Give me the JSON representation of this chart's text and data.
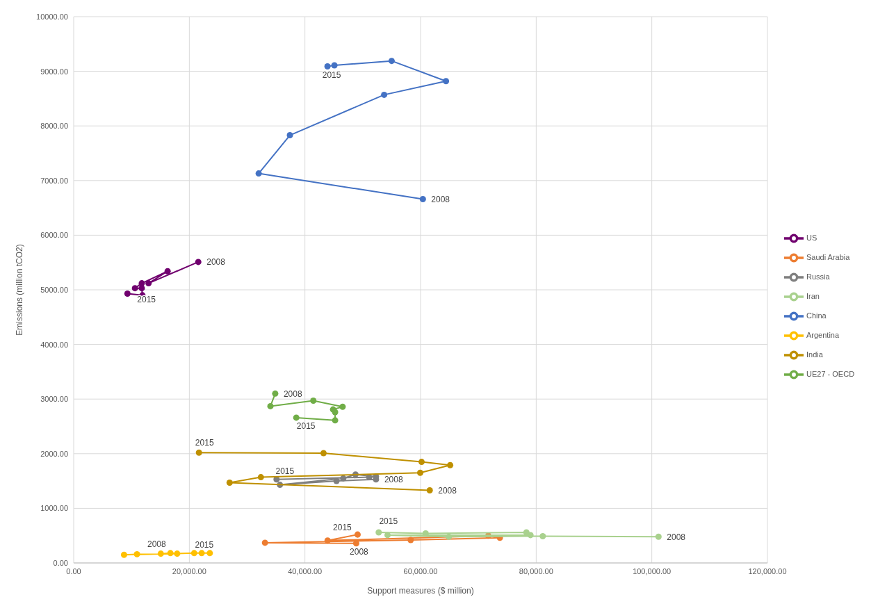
{
  "chart_data": {
    "type": "scatter",
    "xlabel": "Support measures ($ million)",
    "ylabel": "Emissions (million tCO2)",
    "xlim": [
      0,
      120000
    ],
    "ylim": [
      0,
      10000
    ],
    "xticks": [
      {
        "value": 0,
        "label": "0.00"
      },
      {
        "value": 20000,
        "label": "20,000.00"
      },
      {
        "value": 40000,
        "label": "40,000.00"
      },
      {
        "value": 60000,
        "label": "60,000.00"
      },
      {
        "value": 80000,
        "label": "80,000.00"
      },
      {
        "value": 100000,
        "label": "100,000.00"
      },
      {
        "value": 120000,
        "label": "120,000.00"
      }
    ],
    "yticks": [
      {
        "value": 0,
        "label": "0.00"
      },
      {
        "value": 1000,
        "label": "1000.00"
      },
      {
        "value": 2000,
        "label": "2000.00"
      },
      {
        "value": 3000,
        "label": "3000.00"
      },
      {
        "value": 4000,
        "label": "4000.00"
      },
      {
        "value": 5000,
        "label": "5000.00"
      },
      {
        "value": 6000,
        "label": "6000.00"
      },
      {
        "value": 7000,
        "label": "7000.00"
      },
      {
        "value": 8000,
        "label": "8000.00"
      },
      {
        "value": 9000,
        "label": "9000.00"
      },
      {
        "value": 10000,
        "label": "10000.00"
      }
    ],
    "grid": true,
    "legend": "right",
    "marker": "circle",
    "line_style": "solid",
    "series": [
      {
        "name": "US",
        "type": "line",
        "color": "#70006e",
        "x": [
          21550,
          12950,
          16250,
          11780,
          10600,
          11780,
          11890,
          9300
        ],
        "values": [
          5510,
          5120,
          5340,
          5120,
          5030,
          5030,
          4900,
          4930
        ]
      },
      {
        "name": "Saudi Arabia",
        "type": "line",
        "color": "#ed7d31",
        "x": [
          48870,
          33090,
          58290,
          73720,
          71710,
          43920,
          49110
        ],
        "values": [
          360,
          370,
          420,
          460,
          500,
          410,
          520
        ]
      },
      {
        "name": "Russia",
        "type": "line",
        "color": "#7f7f7f",
        "x": [
          52290,
          45460,
          35680,
          46630,
          48750,
          52290,
          51110,
          35090
        ],
        "values": [
          1530,
          1500,
          1430,
          1550,
          1620,
          1580,
          1570,
          1530
        ]
      },
      {
        "name": "Iran",
        "type": "line",
        "color": "#a9d18e",
        "x": [
          101160,
          81140,
          64890,
          54290,
          79020,
          78310,
          60880,
          52760
        ],
        "values": [
          480,
          490,
          480,
          510,
          510,
          560,
          540,
          560
        ]
      },
      {
        "name": "China",
        "type": "line",
        "color": "#4472c4",
        "x": [
          60400,
          32000,
          37400,
          53700,
          64400,
          55000,
          45100,
          43900
        ],
        "values": [
          6660,
          7130,
          7830,
          8570,
          8820,
          9190,
          9110,
          9090
        ]
      },
      {
        "name": "Argentina",
        "type": "line",
        "color": "#ffc000",
        "x": [
          15070,
          16730,
          17900,
          10950,
          8710,
          20840,
          22140,
          23550
        ],
        "values": [
          170,
          180,
          170,
          160,
          150,
          180,
          180,
          180
        ]
      },
      {
        "name": "India",
        "type": "line",
        "color": "#bf9000",
        "x": [
          61590,
          26970,
          32380,
          59940,
          65120,
          60180,
          43220,
          21670
        ],
        "values": [
          1330,
          1470,
          1570,
          1650,
          1790,
          1850,
          2010,
          2020
        ]
      },
      {
        "name": "UE27 - OECD",
        "type": "line",
        "color": "#70ad47",
        "x": [
          34860,
          34030,
          41450,
          46520,
          44870,
          45220,
          45220,
          38500
        ],
        "values": [
          3100,
          2870,
          2970,
          2860,
          2810,
          2760,
          2610,
          2660
        ]
      }
    ],
    "annotations": [
      {
        "text": "2008",
        "x": 60400,
        "y": 6660
      },
      {
        "text": "2015",
        "x": 43900,
        "y": 9090
      },
      {
        "text": "2008",
        "x": 21550,
        "y": 5510
      },
      {
        "text": "2015",
        "x": 9300,
        "y": 4930
      },
      {
        "text": "2008",
        "x": 34860,
        "y": 3100
      },
      {
        "text": "2015",
        "x": 38500,
        "y": 2660
      },
      {
        "text": "2015",
        "x": 21670,
        "y": 2020
      },
      {
        "text": "2008",
        "x": 61590,
        "y": 1330
      },
      {
        "text": "2015",
        "x": 35090,
        "y": 1530
      },
      {
        "text": "2008",
        "x": 52290,
        "y": 1530
      },
      {
        "text": "2015",
        "x": 52760,
        "y": 560
      },
      {
        "text": "2008",
        "x": 101160,
        "y": 480
      },
      {
        "text": "2015",
        "x": 49110,
        "y": 520
      },
      {
        "text": "2008",
        "x": 48870,
        "y": 360
      },
      {
        "text": "2008",
        "x": 15070,
        "y": 170
      },
      {
        "text": "2015",
        "x": 23550,
        "y": 180
      }
    ]
  }
}
